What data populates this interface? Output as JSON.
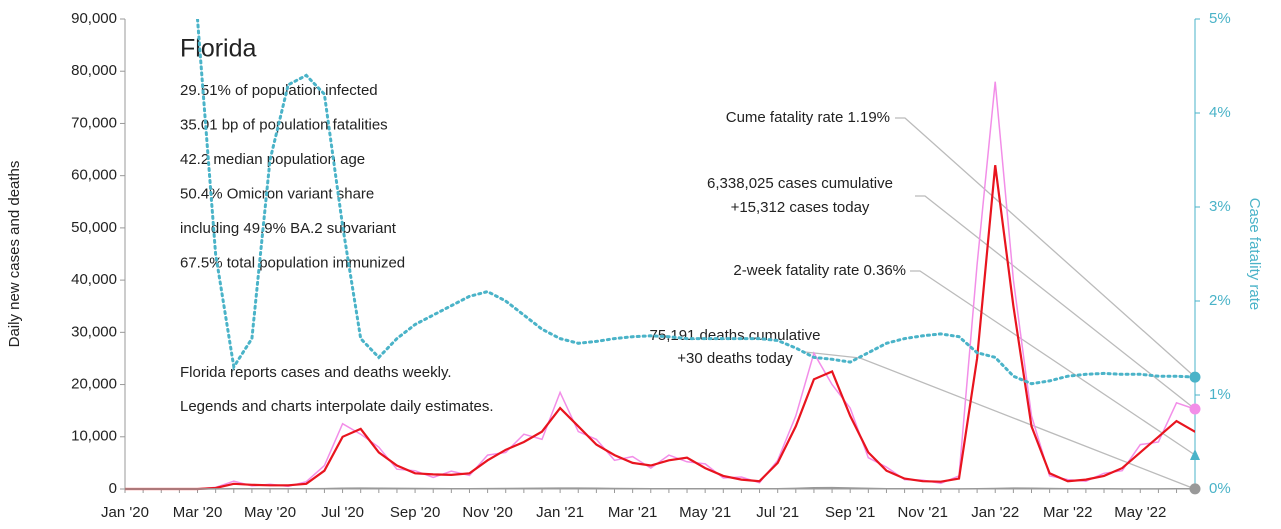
{
  "chart_data": {
    "type": "line",
    "title": "Florida",
    "subtitle": [
      "29.51% of population infected",
      "35.01 bp of population fatalities",
      "42.2 median population age",
      "50.4% Omicron variant share",
      "including 49.9% BA.2 subvariant",
      "67.5% total population immunized"
    ],
    "notes": [
      "Florida reports cases and deaths weekly.",
      "Legends and charts interpolate daily estimates."
    ],
    "annotations": [
      "Cume fatality rate 1.19%",
      "6,338,025 cases cumulative",
      "+15,312 cases today",
      "2-week fatality rate 0.36%",
      "75,191 deaths cumulative",
      "+30 deaths today"
    ],
    "ylabel": "Daily new cases and deaths",
    "y2label": "Case fatality rate",
    "categories": [
      "Jan '20",
      null,
      null,
      null,
      "Mar '20",
      null,
      null,
      null,
      "May '20",
      null,
      null,
      null,
      "Jul '20",
      null,
      null,
      null,
      "Sep '20",
      null,
      null,
      null,
      "Nov '20",
      null,
      null,
      null,
      "Jan '21",
      null,
      null,
      null,
      "Mar '21",
      null,
      null,
      null,
      "May '21",
      null,
      null,
      null,
      "Jul '21",
      null,
      null,
      null,
      "Sep '21",
      null,
      null,
      null,
      "Nov '21",
      null,
      null,
      null,
      "Jan '22",
      null,
      null,
      null,
      "Mar '22",
      null,
      null,
      null,
      "May '22",
      null,
      null,
      null
    ],
    "series": [
      {
        "color": "#f28ee8",
        "values": [
          0,
          0,
          0,
          0,
          0,
          300,
          1500,
          600,
          900,
          500,
          1400,
          4500,
          12500,
          10500,
          8000,
          3800,
          3500,
          2200,
          3400,
          2600,
          6500,
          7000,
          10500,
          9500,
          18500,
          11000,
          9500,
          5500,
          6200,
          4000,
          6500,
          5200,
          4800,
          2100,
          2300,
          1200,
          5500,
          14000,
          26000,
          20000,
          15500,
          6000,
          4200,
          1800,
          1700,
          1100,
          2500,
          43000,
          78000,
          40000,
          14000,
          2500,
          1800,
          1500,
          3000,
          3500,
          8500,
          9000,
          16500,
          15312
        ]
      },
      {
        "color": "#e8141e",
        "values": [
          0,
          0,
          0,
          0,
          0,
          200,
          1000,
          800,
          700,
          700,
          1000,
          3500,
          10000,
          11500,
          7000,
          4500,
          3000,
          2800,
          2700,
          3000,
          5500,
          7500,
          9000,
          11000,
          15500,
          12000,
          8500,
          6500,
          5000,
          4500,
          5500,
          6000,
          4000,
          2500,
          1800,
          1500,
          5000,
          12000,
          21000,
          22500,
          14000,
          7000,
          3500,
          2000,
          1500,
          1400,
          2000,
          25000,
          62000,
          35000,
          12000,
          3000,
          1500,
          1800,
          2500,
          4000,
          7000,
          10000,
          13000,
          11000
        ]
      },
      {
        "color": "#999999",
        "values": [
          0,
          0,
          0,
          0,
          0,
          20,
          50,
          40,
          40,
          30,
          40,
          80,
          150,
          180,
          150,
          120,
          100,
          80,
          60,
          60,
          70,
          100,
          120,
          150,
          180,
          170,
          130,
          90,
          70,
          60,
          60,
          60,
          50,
          40,
          30,
          30,
          50,
          120,
          230,
          260,
          200,
          120,
          60,
          40,
          30,
          25,
          25,
          40,
          100,
          180,
          160,
          100,
          60,
          40,
          30,
          20,
          20,
          20,
          30,
          30
        ]
      },
      {
        "color": "#4ab3c8",
        "axis": "y2",
        "dashed": true,
        "values": [
          null,
          null,
          null,
          null,
          5,
          2.5,
          1.3,
          1.6,
          3.5,
          4.3,
          4.4,
          4.2,
          2.8,
          1.6,
          1.4,
          1.6,
          1.75,
          1.85,
          1.95,
          2.05,
          2.1,
          2.0,
          1.85,
          1.7,
          1.6,
          1.55,
          1.57,
          1.6,
          1.62,
          1.63,
          1.62,
          1.6,
          1.6,
          1.6,
          1.6,
          1.6,
          1.58,
          1.5,
          1.4,
          1.38,
          1.35,
          1.45,
          1.55,
          1.6,
          1.63,
          1.65,
          1.62,
          1.45,
          1.4,
          1.2,
          1.12,
          1.15,
          1.2,
          1.22,
          1.23,
          1.22,
          1.22,
          1.2,
          1.2,
          1.19
        ]
      }
    ],
    "ylim": [
      0,
      90000
    ],
    "yticks": [
      0,
      {
        "value": 10000,
        "label": "10,000"
      },
      {
        "value": 20000,
        "label": "20,000"
      },
      {
        "value": 30000,
        "label": "30,000"
      },
      {
        "value": 40000,
        "label": "40,000"
      },
      {
        "value": 50000,
        "label": "50,000"
      },
      {
        "value": 60000,
        "label": "60,000"
      },
      {
        "value": 70000,
        "label": "70,000"
      },
      {
        "value": 80000,
        "label": "80,000"
      },
      {
        "value": 90000,
        "label": "90,000"
      }
    ],
    "y2lim": [
      0,
      5
    ],
    "y2ticks": [
      {
        "value": 0,
        "label": "0%"
      },
      {
        "value": 1,
        "label": "1%"
      },
      {
        "value": 2,
        "label": "2%"
      },
      {
        "value": 3,
        "label": "3%"
      },
      {
        "value": 4,
        "label": "4%"
      },
      {
        "value": 5,
        "label": "5%"
      }
    ]
  }
}
